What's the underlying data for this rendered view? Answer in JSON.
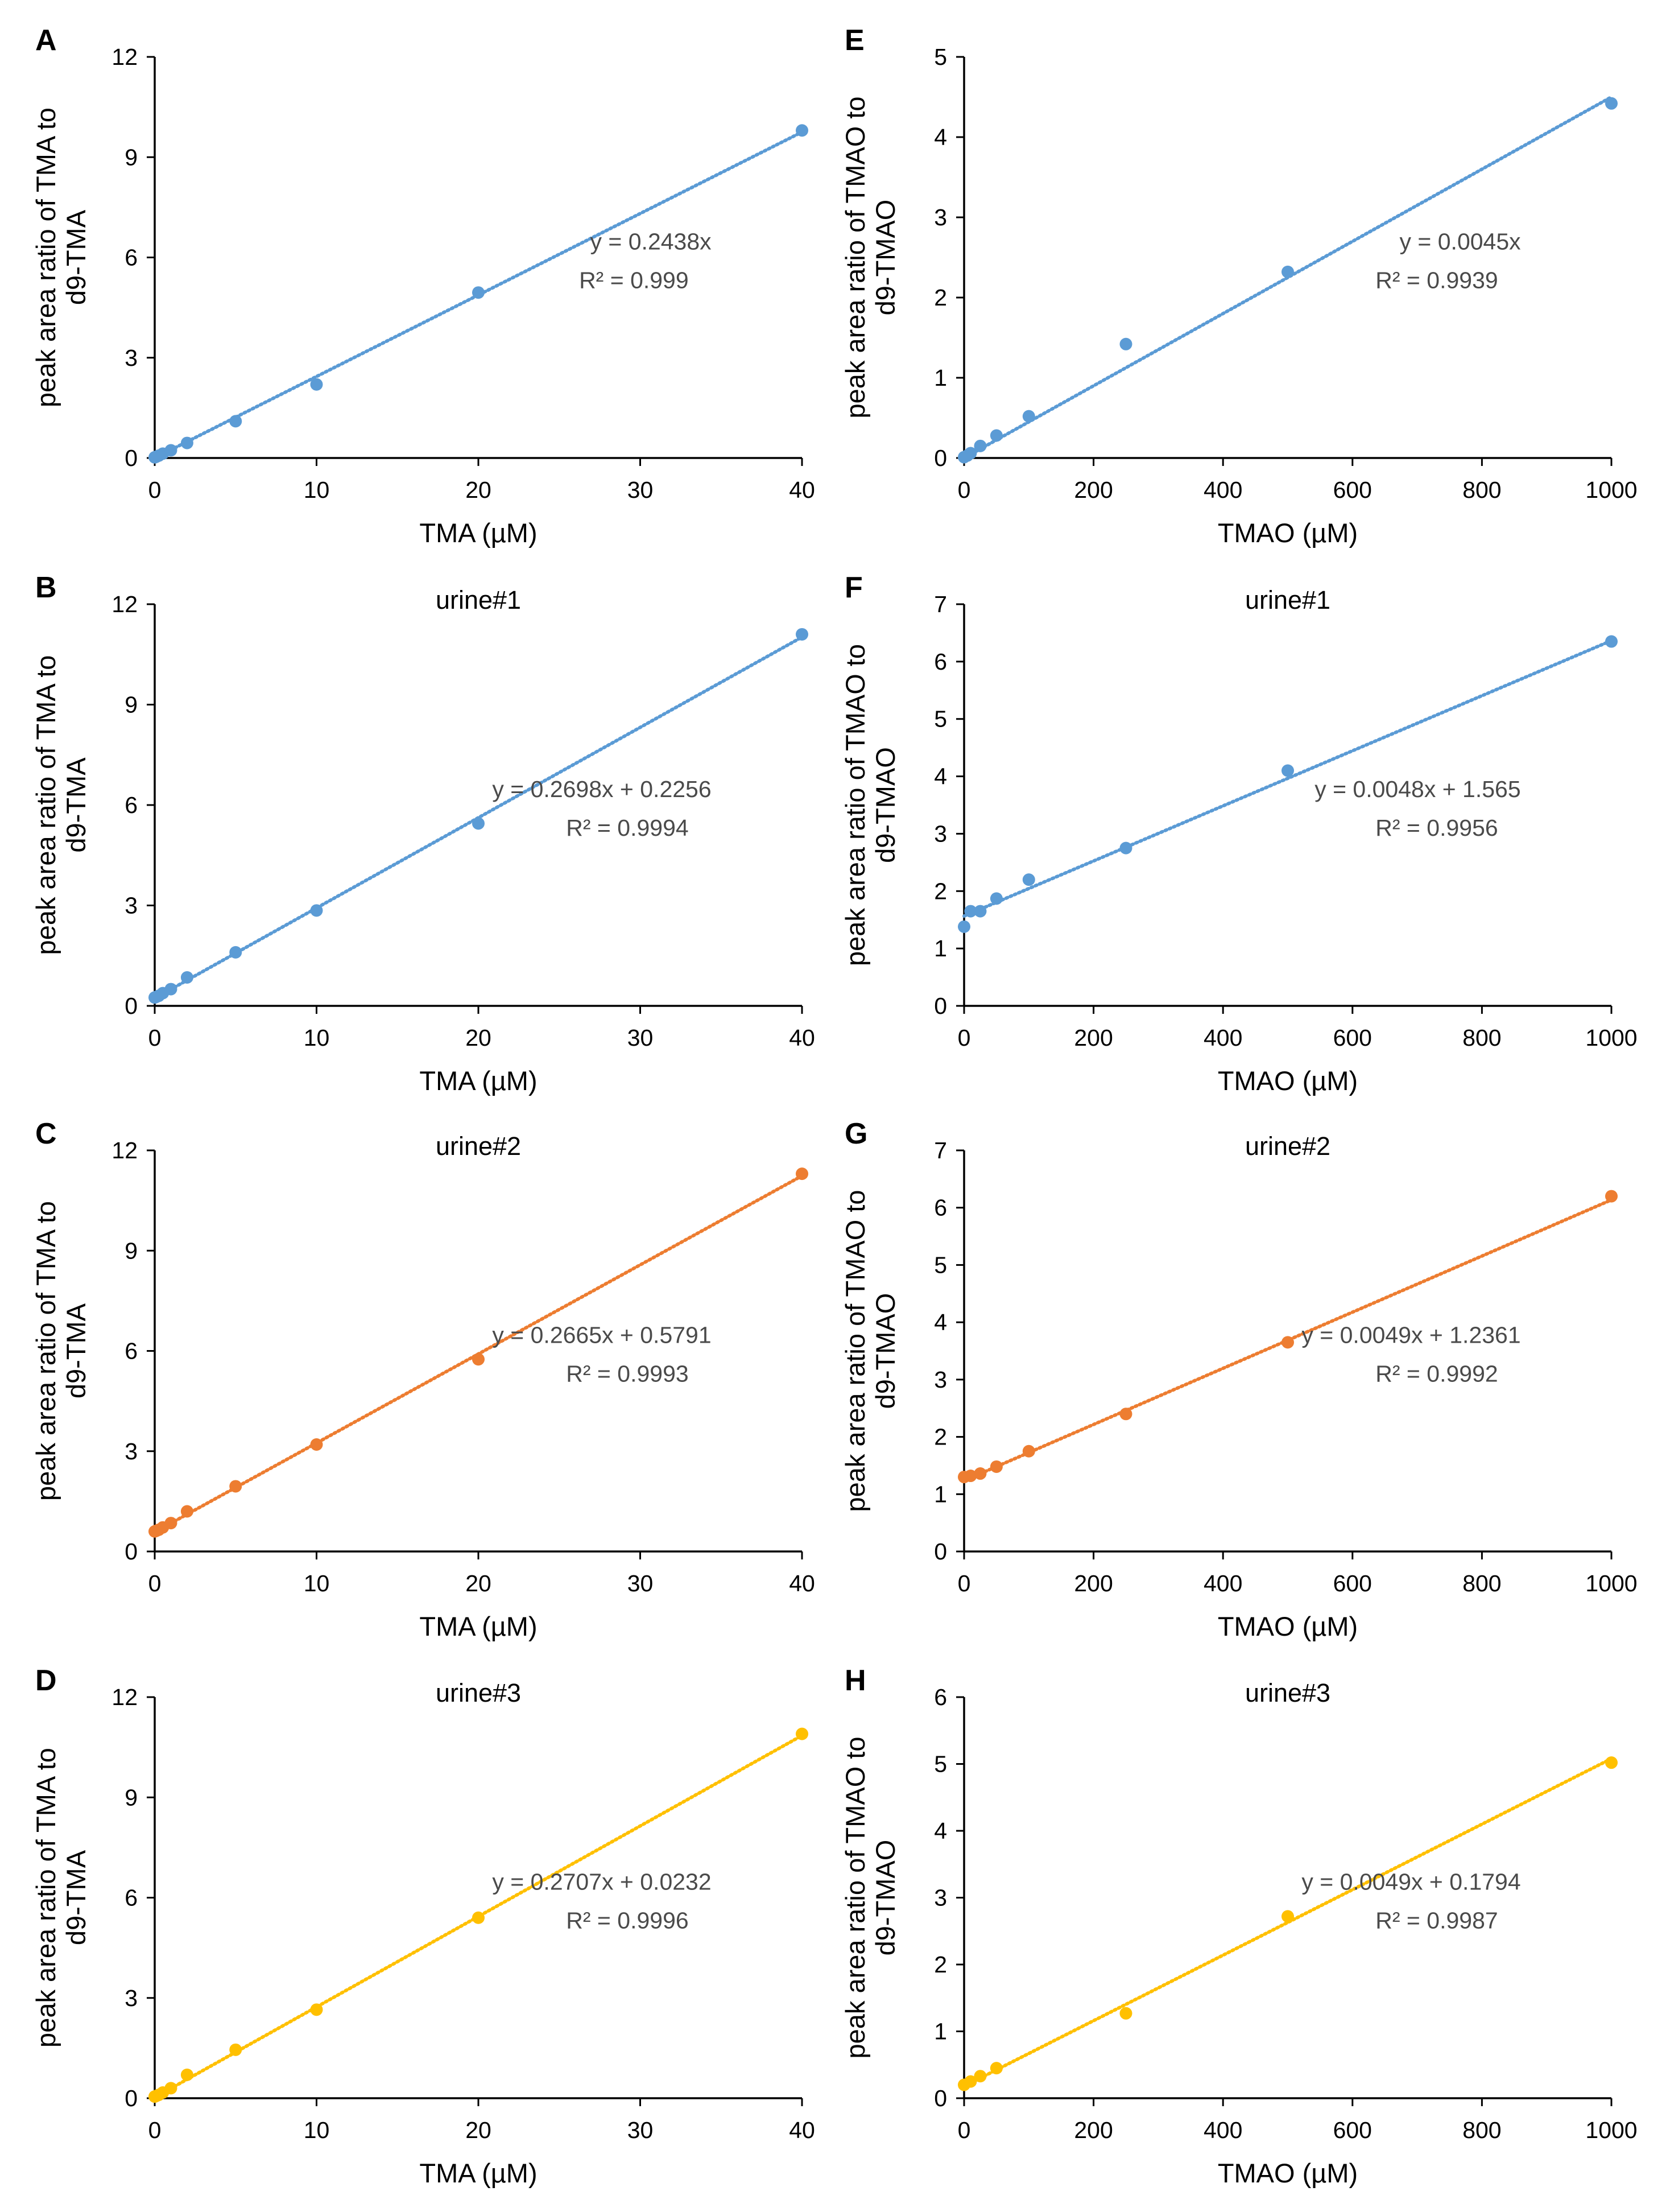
{
  "colors": {
    "blue": "#5b9bd5",
    "orange": "#ed7d31",
    "yellow": "#ffc000"
  },
  "chart_data": [
    {
      "panel": "A",
      "type": "scatter",
      "title": "",
      "color": "blue",
      "xlabel": "TMA (µM)",
      "ylabel": [
        "peak area ratio of TMA to",
        "d9-TMA"
      ],
      "xlim": [
        0,
        40
      ],
      "ylim": [
        0,
        12
      ],
      "xticks": [
        "0",
        "10",
        "20",
        "30",
        "40"
      ],
      "yticks": [
        "0",
        "3",
        "6",
        "9",
        "12"
      ],
      "x": [
        0,
        0.1,
        0.25,
        0.5,
        1,
        2,
        5,
        10,
        20,
        40
      ],
      "y": [
        0.02,
        0.04,
        0.07,
        0.13,
        0.23,
        0.45,
        1.1,
        2.2,
        4.95,
        9.8
      ],
      "trendline": {
        "slope": 0.2438,
        "intercept": 0
      },
      "equation": "y = 0.2438x",
      "r2": "R² = 0.999"
    },
    {
      "panel": "B",
      "type": "scatter",
      "title": "urine#1",
      "color": "blue",
      "xlabel": "TMA (µM)",
      "ylabel": [
        "peak area ratio of TMA to",
        "d9-TMA"
      ],
      "xlim": [
        0,
        40
      ],
      "ylim": [
        0,
        12
      ],
      "xticks": [
        "0",
        "10",
        "20",
        "30",
        "40"
      ],
      "yticks": [
        "0",
        "3",
        "6",
        "9",
        "12"
      ],
      "x": [
        0,
        0.1,
        0.25,
        0.5,
        1,
        2,
        5,
        10,
        20,
        40
      ],
      "y": [
        0.25,
        0.27,
        0.3,
        0.38,
        0.5,
        0.85,
        1.6,
        2.85,
        5.45,
        11.1
      ],
      "trendline": {
        "slope": 0.2698,
        "intercept": 0.2256
      },
      "equation": "y = 0.2698x + 0.2256",
      "r2": "R² = 0.9994"
    },
    {
      "panel": "C",
      "type": "scatter",
      "title": "urine#2",
      "color": "orange",
      "xlabel": "TMA (µM)",
      "ylabel": [
        "peak area ratio of TMA to",
        "d9-TMA"
      ],
      "xlim": [
        0,
        40
      ],
      "ylim": [
        0,
        12
      ],
      "xticks": [
        "0",
        "10",
        "20",
        "30",
        "40"
      ],
      "yticks": [
        "0",
        "3",
        "6",
        "9",
        "12"
      ],
      "x": [
        0,
        0.1,
        0.25,
        0.5,
        1,
        2,
        5,
        10,
        20,
        40
      ],
      "y": [
        0.6,
        0.62,
        0.65,
        0.72,
        0.85,
        1.2,
        1.95,
        3.2,
        5.75,
        11.3
      ],
      "trendline": {
        "slope": 0.2665,
        "intercept": 0.5791
      },
      "equation": "y = 0.2665x + 0.5791",
      "r2": "R² = 0.9993"
    },
    {
      "panel": "D",
      "type": "scatter",
      "title": "urine#3",
      "color": "yellow",
      "xlabel": "TMA (µM)",
      "ylabel": [
        "peak area ratio of TMA to",
        "d9-TMA"
      ],
      "xlim": [
        0,
        40
      ],
      "ylim": [
        0,
        12
      ],
      "xticks": [
        "0",
        "10",
        "20",
        "30",
        "40"
      ],
      "yticks": [
        "0",
        "3",
        "6",
        "9",
        "12"
      ],
      "x": [
        0,
        0.1,
        0.25,
        0.5,
        1,
        2,
        5,
        10,
        20,
        40
      ],
      "y": [
        0.05,
        0.07,
        0.1,
        0.17,
        0.3,
        0.7,
        1.45,
        2.65,
        5.4,
        10.9
      ],
      "trendline": {
        "slope": 0.2707,
        "intercept": 0.0232
      },
      "equation": "y = 0.2707x + 0.0232",
      "r2": "R² = 0.9996"
    },
    {
      "panel": "E",
      "type": "scatter",
      "title": "",
      "color": "blue",
      "xlabel": "TMAO (µM)",
      "ylabel": [
        "peak area ratio of TMAO to",
        "d9-TMAO"
      ],
      "xlim": [
        0,
        1000
      ],
      "ylim": [
        0,
        5
      ],
      "xticks": [
        "0",
        "200",
        "400",
        "600",
        "800",
        "1000"
      ],
      "yticks": [
        "0",
        "1",
        "2",
        "3",
        "4",
        "5"
      ],
      "x": [
        0,
        5,
        10,
        25,
        50,
        100,
        250,
        500,
        1000
      ],
      "y": [
        0.01,
        0.03,
        0.06,
        0.15,
        0.28,
        0.52,
        1.42,
        2.32,
        4.42
      ],
      "trendline": {
        "slope": 0.0045,
        "intercept": 0
      },
      "equation": "y = 0.0045x",
      "r2": "R² = 0.9939"
    },
    {
      "panel": "F",
      "type": "scatter",
      "title": "urine#1",
      "color": "blue",
      "xlabel": "TMAO (µM)",
      "ylabel": [
        "peak area ratio of TMAO to",
        "d9-TMAO"
      ],
      "xlim": [
        0,
        1000
      ],
      "ylim": [
        0,
        7
      ],
      "xticks": [
        "0",
        "200",
        "400",
        "600",
        "800",
        "1000"
      ],
      "yticks": [
        "0",
        "1",
        "2",
        "3",
        "4",
        "5",
        "6",
        "7"
      ],
      "x": [
        0,
        10,
        25,
        50,
        100,
        250,
        500,
        1000
      ],
      "y": [
        1.38,
        1.65,
        1.65,
        1.87,
        2.2,
        2.75,
        4.1,
        6.35
      ],
      "trendline": {
        "slope": 0.0048,
        "intercept": 1.565
      },
      "equation": "y = 0.0048x + 1.565",
      "r2": "R² = 0.9956"
    },
    {
      "panel": "G",
      "type": "scatter",
      "title": "urine#2",
      "color": "orange",
      "xlabel": "TMAO (µM)",
      "ylabel": [
        "peak area ratio of TMAO to",
        "d9-TMAO"
      ],
      "xlim": [
        0,
        1000
      ],
      "ylim": [
        0,
        7
      ],
      "xticks": [
        "0",
        "200",
        "400",
        "600",
        "800",
        "1000"
      ],
      "yticks": [
        "0",
        "1",
        "2",
        "3",
        "4",
        "5",
        "6",
        "7"
      ],
      "x": [
        0,
        10,
        25,
        50,
        100,
        250,
        500,
        1000
      ],
      "y": [
        1.3,
        1.32,
        1.36,
        1.48,
        1.75,
        2.4,
        3.65,
        6.2
      ],
      "trendline": {
        "slope": 0.0049,
        "intercept": 1.2361
      },
      "equation": "y = 0.0049x + 1.2361",
      "r2": "R² = 0.9992"
    },
    {
      "panel": "H",
      "type": "scatter",
      "title": "urine#3",
      "color": "yellow",
      "xlabel": "TMAO (µM)",
      "ylabel": [
        "peak area ratio of TMAO to",
        "d9-TMAO"
      ],
      "xlim": [
        0,
        1000
      ],
      "ylim": [
        0,
        6
      ],
      "xticks": [
        "0",
        "200",
        "400",
        "600",
        "800",
        "1000"
      ],
      "yticks": [
        "0",
        "1",
        "2",
        "3",
        "4",
        "5",
        "6"
      ],
      "x": [
        0,
        10,
        25,
        50,
        250,
        500,
        1000
      ],
      "y": [
        0.2,
        0.25,
        0.33,
        0.45,
        1.27,
        2.72,
        5.02
      ],
      "trendline": {
        "slope": 0.0049,
        "intercept": 0.1794
      },
      "equation": "y = 0.0049x + 0.1794",
      "r2": "R² = 0.9987"
    }
  ]
}
